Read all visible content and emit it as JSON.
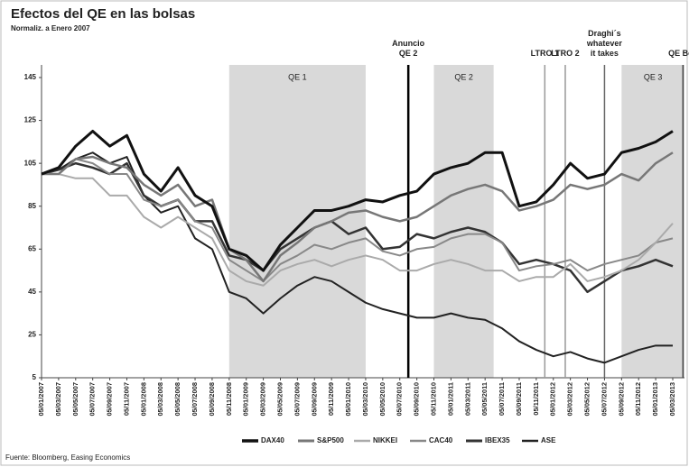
{
  "chart_data": {
    "type": "line",
    "title": "Efectos del QE en las bolsas",
    "subtitle": "Normaliz. a Enero 2007",
    "source": "Fuente: Bloomberg, Easing Economics",
    "categories": [
      "05/01/2007",
      "05/03/2007",
      "05/05/2007",
      "05/07/2007",
      "05/09/2007",
      "05/11/2007",
      "05/01/2008",
      "05/03/2008",
      "05/05/2008",
      "05/07/2008",
      "05/09/2008",
      "05/11/2008",
      "05/01/2009",
      "05/03/2009",
      "05/05/2009",
      "05/07/2009",
      "05/09/2009",
      "05/11/2009",
      "05/01/2010",
      "05/03/2010",
      "05/05/2010",
      "05/07/2010",
      "05/09/2010",
      "05/11/2010",
      "05/01/2011",
      "05/03/2011",
      "05/05/2011",
      "05/07/2011",
      "05/09/2011",
      "05/11/2011",
      "05/01/2012",
      "05/03/2012",
      "05/05/2012",
      "05/07/2012",
      "05/09/2012",
      "05/11/2012",
      "05/01/2013",
      "05/03/2013"
    ],
    "series": [
      {
        "name": "DAX40",
        "color": "#111111",
        "width": 3,
        "values": [
          100,
          103,
          113,
          120,
          113,
          118,
          100,
          92,
          103,
          90,
          85,
          65,
          62,
          55,
          67,
          75,
          83,
          83,
          85,
          88,
          87,
          90,
          92,
          100,
          103,
          105,
          110,
          110,
          85,
          87,
          95,
          105,
          98,
          100,
          110,
          112,
          115,
          120
        ]
      },
      {
        "name": "S&P500",
        "color": "#777777",
        "width": 2.5,
        "values": [
          100,
          100,
          107,
          108,
          105,
          103,
          95,
          90,
          95,
          85,
          88,
          65,
          60,
          50,
          62,
          68,
          75,
          78,
          82,
          83,
          80,
          78,
          80,
          85,
          90,
          93,
          95,
          92,
          83,
          85,
          88,
          95,
          93,
          95,
          100,
          97,
          105,
          110
        ]
      },
      {
        "name": "NIKKEI",
        "color": "#aaaaaa",
        "width": 2,
        "values": [
          100,
          100,
          98,
          98,
          90,
          90,
          80,
          75,
          80,
          75,
          70,
          55,
          50,
          48,
          55,
          58,
          60,
          57,
          60,
          62,
          60,
          55,
          55,
          58,
          60,
          58,
          55,
          55,
          50,
          52,
          52,
          58,
          50,
          52,
          55,
          60,
          68,
          77
        ]
      },
      {
        "name": "CAC40",
        "color": "#888888",
        "width": 2,
        "values": [
          100,
          100,
          107,
          105,
          100,
          100,
          88,
          85,
          88,
          78,
          75,
          60,
          55,
          50,
          58,
          62,
          67,
          65,
          68,
          70,
          64,
          62,
          65,
          66,
          70,
          72,
          72,
          68,
          55,
          57,
          58,
          60,
          55,
          58,
          60,
          62,
          68,
          70
        ]
      },
      {
        "name": "IBEX35",
        "color": "#333333",
        "width": 2.5,
        "values": [
          100,
          102,
          105,
          103,
          100,
          105,
          90,
          85,
          88,
          78,
          78,
          62,
          60,
          55,
          65,
          70,
          75,
          78,
          72,
          75,
          65,
          66,
          72,
          70,
          73,
          75,
          73,
          68,
          58,
          60,
          58,
          55,
          45,
          50,
          55,
          57,
          60,
          57
        ]
      },
      {
        "name": "ASE",
        "color": "#222222",
        "width": 2,
        "values": [
          100,
          102,
          107,
          110,
          105,
          108,
          90,
          82,
          85,
          70,
          65,
          45,
          42,
          35,
          42,
          48,
          52,
          50,
          45,
          40,
          37,
          35,
          33,
          33,
          35,
          33,
          32,
          28,
          22,
          18,
          15,
          17,
          14,
          12,
          15,
          18,
          20,
          20
        ]
      }
    ],
    "ylim": [
      5,
      145
    ],
    "yticks": [
      5,
      25,
      45,
      65,
      85,
      105,
      125,
      145
    ],
    "grid": false,
    "regions": [
      {
        "label": "QE 1",
        "start": 11,
        "end": 19
      },
      {
        "label": "QE 2",
        "start": 23,
        "end": 26.5
      },
      {
        "label": "QE 3",
        "start": 34,
        "end": 38
      }
    ],
    "events": [
      {
        "lines": [
          "Anuncio",
          "QE 2"
        ],
        "x": 21.5,
        "color": "#000000"
      },
      {
        "lines": [
          "LTRO 1"
        ],
        "x": 29.5,
        "color": "#999999"
      },
      {
        "lines": [
          "LTRO 2"
        ],
        "x": 30.7,
        "color": "#999999"
      },
      {
        "lines": [
          "Draghi´s",
          "whatever",
          "it takes"
        ],
        "x": 33,
        "color": "#666666"
      },
      {
        "lines": [
          "QE BoJ"
        ],
        "x": 37.6,
        "color": "#444444"
      }
    ]
  }
}
